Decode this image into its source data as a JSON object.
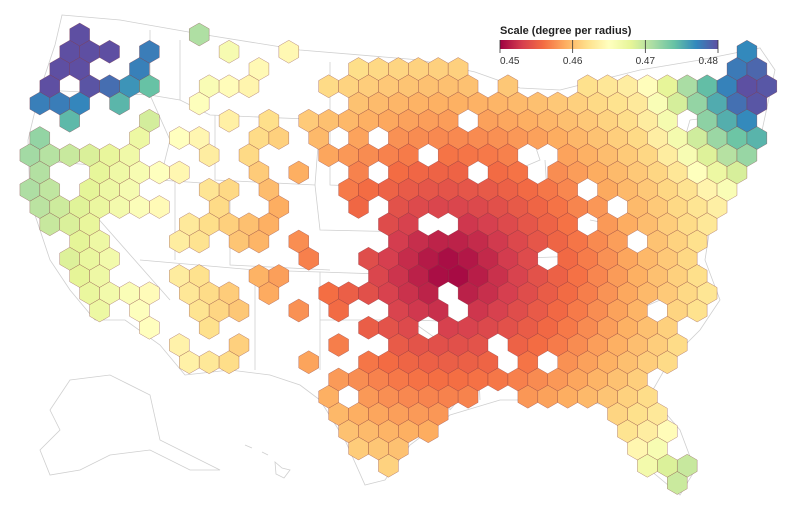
{
  "legend": {
    "title": "Scale (degree per radius)",
    "domain": [
      0.45,
      0.48
    ],
    "ticks": [
      "0.45",
      "0.46",
      "0.47",
      "0.48"
    ]
  },
  "colors": {
    "ramp": [
      "#9e0142",
      "#d53e4f",
      "#f46d43",
      "#fdae61",
      "#fee08b",
      "#ffffbf",
      "#e6f598",
      "#abdda4",
      "#66c2a5",
      "#3288bd",
      "#5e4fa2"
    ],
    "state_borders": "#cfcfcf",
    "background": "#ffffff"
  },
  "map": {
    "projection": "albers-usa",
    "region": "United States",
    "encoding": "hexbin"
  }
}
